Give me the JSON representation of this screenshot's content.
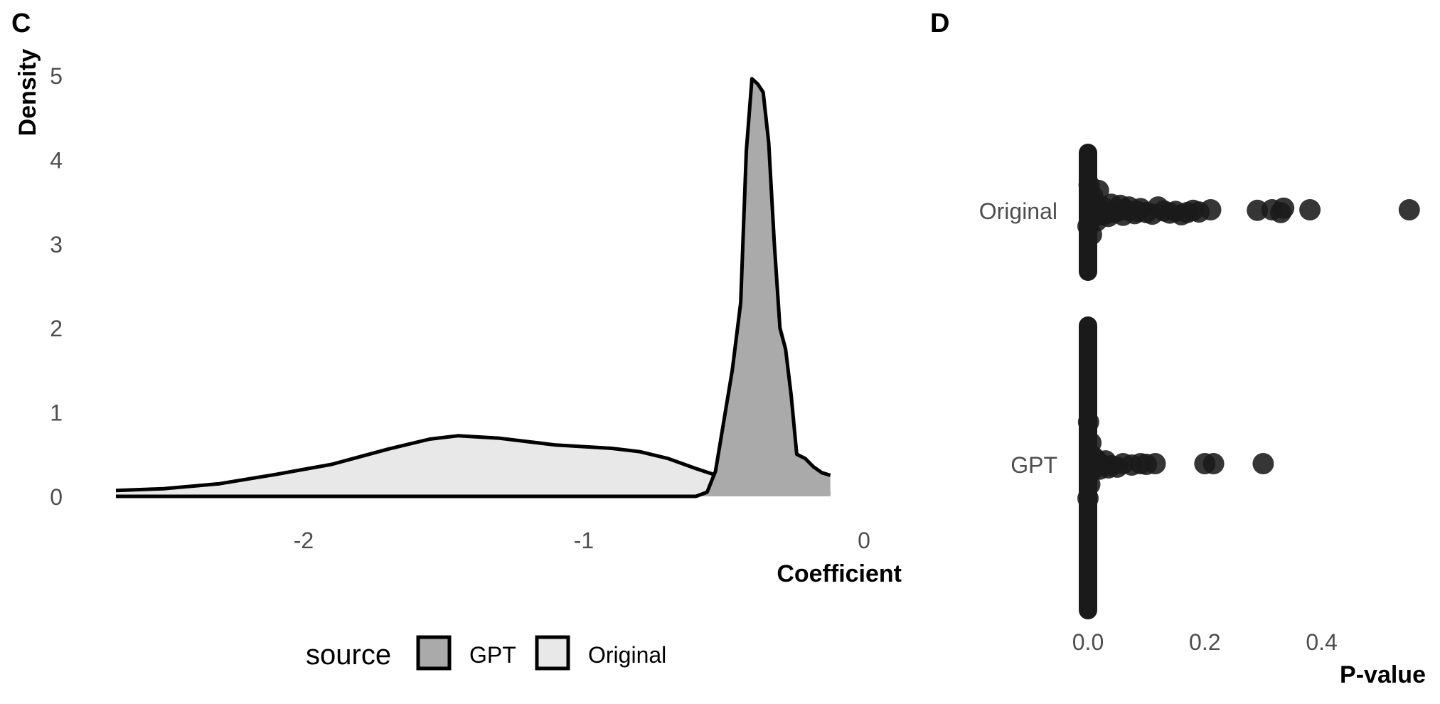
{
  "panels": {
    "C": {
      "label": "C"
    },
    "D": {
      "label": "D"
    }
  },
  "legend": {
    "title": "source",
    "entries": [
      {
        "label": "GPT",
        "color": "#aaaaaa"
      },
      {
        "label": "Original",
        "color": "#e8e8e8"
      }
    ]
  },
  "chart_data": [
    {
      "panel": "C",
      "type": "area",
      "xlabel": "Coefficient",
      "ylabel": "Density",
      "xlim": [
        -2.67,
        0
      ],
      "ylim": [
        0,
        5
      ],
      "xticks": [
        -2,
        -1,
        0
      ],
      "yticks": [
        0,
        1,
        2,
        3,
        4,
        5
      ],
      "grid": false,
      "series": [
        {
          "name": "Original",
          "color": "#e8e8e8",
          "x": [
            -2.67,
            -2.5,
            -2.3,
            -2.1,
            -1.9,
            -1.7,
            -1.55,
            -1.45,
            -1.3,
            -1.1,
            -0.9,
            -0.8,
            -0.7,
            -0.6,
            -0.5,
            -0.4,
            -0.3,
            -0.2,
            -0.12
          ],
          "y": [
            0.07,
            0.09,
            0.15,
            0.26,
            0.38,
            0.56,
            0.68,
            0.72,
            0.69,
            0.61,
            0.57,
            0.53,
            0.45,
            0.33,
            0.22,
            0.13,
            0.08,
            0.04,
            0.03
          ]
        },
        {
          "name": "GPT",
          "color": "#aaaaaa",
          "x": [
            -2.67,
            -1.0,
            -0.6,
            -0.56,
            -0.53,
            -0.5,
            -0.47,
            -0.44,
            -0.42,
            -0.4,
            -0.38,
            -0.36,
            -0.34,
            -0.32,
            -0.3,
            -0.28,
            -0.26,
            -0.24,
            -0.21,
            -0.18,
            -0.15,
            -0.12
          ],
          "y": [
            0,
            0,
            0,
            0.05,
            0.3,
            0.9,
            1.5,
            2.3,
            4.1,
            4.96,
            4.9,
            4.8,
            4.2,
            3.0,
            2.0,
            1.75,
            1.2,
            0.5,
            0.45,
            0.35,
            0.28,
            0.25
          ]
        }
      ]
    },
    {
      "panel": "D",
      "type": "scatter",
      "xlabel": "P-value",
      "xlim": [
        -0.0,
        0.56
      ],
      "xticks": [
        "0.0",
        "0.2",
        "0.4"
      ],
      "xtick_values": [
        0.0,
        0.2,
        0.4
      ],
      "categories": [
        "GPT",
        "Original"
      ],
      "point_color": "#1a1a1a",
      "series": [
        {
          "name": "Original",
          "x": [
            0.0,
            0.002,
            0.004,
            0.006,
            0.008,
            0.01,
            0.012,
            0.015,
            0.018,
            0.02,
            0.025,
            0.03,
            0.035,
            0.04,
            0.045,
            0.05,
            0.055,
            0.06,
            0.065,
            0.07,
            0.08,
            0.085,
            0.09,
            0.1,
            0.11,
            0.12,
            0.13,
            0.14,
            0.15,
            0.16,
            0.17,
            0.18,
            0.19,
            0.21,
            0.29,
            0.315,
            0.33,
            0.335,
            0.38,
            0.55
          ],
          "jitter": [
            0.3,
            -0.45,
            0.15,
            0.45,
            -0.25,
            0.05,
            -0.1,
            0.2,
            -0.35,
            0.1,
            -0.05,
            0.08,
            0.12,
            -0.1,
            0.05,
            0.02,
            -0.08,
            0.1,
            0.0,
            -0.05,
            0.07,
            0.03,
            -0.02,
            0.05,
            0.08,
            -0.05,
            0.02,
            0.06,
            0.03,
            0.09,
            0.05,
            0.01,
            0.04,
            0.0,
            0.01,
            0.0,
            0.05,
            -0.03,
            0.0,
            0.0
          ]
        },
        {
          "name": "GPT",
          "x": [
            0.0,
            0.001,
            0.003,
            0.005,
            0.007,
            0.009,
            0.012,
            0.015,
            0.02,
            0.025,
            0.03,
            0.035,
            0.04,
            0.05,
            0.06,
            0.075,
            0.09,
            0.1,
            0.115,
            0.2,
            0.215,
            0.3
          ],
          "jitter": [
            0.5,
            -0.6,
            0.3,
            -0.3,
            0.1,
            -0.1,
            0.05,
            -0.05,
            0.08,
            0.02,
            -0.04,
            0.06,
            0.03,
            0.05,
            0.0,
            0.02,
            0.0,
            0.01,
            0.0,
            0.0,
            0.0,
            0.0
          ]
        }
      ]
    }
  ]
}
